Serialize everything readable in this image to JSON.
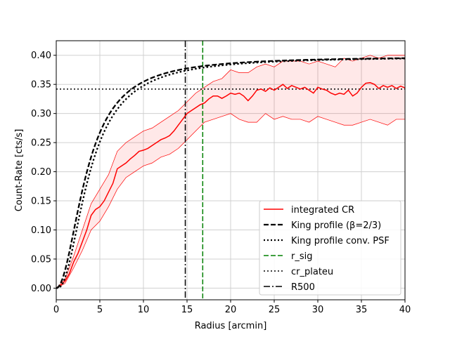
{
  "chart_data": {
    "type": "line",
    "xlabel": "Radius [arcmin]",
    "ylabel": "Count-Rate [cts/s]",
    "xlim": [
      0,
      40
    ],
    "ylim": [
      -0.02,
      0.425
    ],
    "x_ticks": [
      0,
      5,
      10,
      15,
      20,
      25,
      30,
      35,
      40
    ],
    "x_tick_labels": [
      "0",
      "5",
      "10",
      "15",
      "20",
      "25",
      "30",
      "35",
      "40"
    ],
    "y_ticks": [
      0.0,
      0.05,
      0.1,
      0.15,
      0.2,
      0.25,
      0.3,
      0.35,
      0.4
    ],
    "y_tick_labels": [
      "0.00",
      "0.05",
      "0.10",
      "0.15",
      "0.20",
      "0.25",
      "0.30",
      "0.35",
      "0.40"
    ],
    "grid": true,
    "legend_position": "lower-right",
    "series": [
      {
        "name": "integrated CR",
        "color": "#ff0000",
        "style": "solid",
        "x": [
          0,
          0.5,
          1,
          1.5,
          2,
          2.5,
          3,
          3.5,
          4,
          4.5,
          5,
          5.5,
          6,
          6.5,
          7,
          7.5,
          8,
          8.5,
          9,
          9.5,
          10,
          10.5,
          11,
          11.5,
          12,
          12.5,
          13,
          13.5,
          14,
          14.5,
          15,
          15.5,
          16,
          16.5,
          17,
          17.5,
          18,
          18.5,
          19,
          19.5,
          20,
          20.5,
          21,
          21.5,
          22,
          22.5,
          23,
          23.5,
          24,
          24.5,
          25,
          25.5,
          26,
          26.5,
          27,
          27.5,
          28,
          28.5,
          29,
          29.5,
          30,
          30.5,
          31,
          31.5,
          32,
          32.5,
          33,
          33.5,
          34,
          34.5,
          35,
          35.5,
          36,
          36.5,
          37,
          37.5,
          38,
          38.5,
          39,
          39.5,
          40
        ],
        "y": [
          0.0,
          0.005,
          0.012,
          0.025,
          0.045,
          0.06,
          0.08,
          0.1,
          0.125,
          0.135,
          0.14,
          0.15,
          0.165,
          0.18,
          0.205,
          0.21,
          0.215,
          0.222,
          0.228,
          0.235,
          0.237,
          0.24,
          0.245,
          0.25,
          0.255,
          0.258,
          0.262,
          0.27,
          0.28,
          0.29,
          0.3,
          0.305,
          0.31,
          0.315,
          0.318,
          0.325,
          0.33,
          0.33,
          0.326,
          0.33,
          0.335,
          0.333,
          0.335,
          0.33,
          0.322,
          0.33,
          0.34,
          0.342,
          0.338,
          0.344,
          0.34,
          0.345,
          0.35,
          0.343,
          0.348,
          0.345,
          0.342,
          0.345,
          0.34,
          0.335,
          0.345,
          0.342,
          0.34,
          0.335,
          0.332,
          0.335,
          0.333,
          0.34,
          0.33,
          0.335,
          0.345,
          0.352,
          0.353,
          0.35,
          0.343,
          0.348,
          0.345,
          0.348,
          0.343,
          0.347,
          0.344
        ]
      },
      {
        "name": "King profile (β=2/3)",
        "color": "#000000",
        "style": "dashed",
        "model": "king",
        "amplitude": 0.398,
        "core_radius": 3.5
      },
      {
        "name": "King profile conv. PSF",
        "color": "#000000",
        "style": "dotted",
        "model": "king_conv",
        "amplitude": 0.398,
        "core_radius": 3.8
      }
    ],
    "band": {
      "color": "#ff0000",
      "x": [
        0,
        1,
        2,
        3,
        4,
        5,
        6,
        7,
        8,
        9,
        10,
        11,
        12,
        13,
        14,
        15,
        16,
        17,
        18,
        19,
        20,
        21,
        22,
        23,
        24,
        25,
        26,
        27,
        28,
        29,
        30,
        31,
        32,
        33,
        34,
        35,
        36,
        37,
        38,
        39,
        40
      ],
      "upper": [
        0.0,
        0.015,
        0.055,
        0.1,
        0.145,
        0.17,
        0.195,
        0.235,
        0.25,
        0.26,
        0.27,
        0.275,
        0.285,
        0.295,
        0.305,
        0.32,
        0.335,
        0.345,
        0.355,
        0.36,
        0.375,
        0.37,
        0.37,
        0.38,
        0.385,
        0.38,
        0.39,
        0.39,
        0.39,
        0.385,
        0.39,
        0.385,
        0.38,
        0.395,
        0.39,
        0.395,
        0.4,
        0.395,
        0.4,
        0.4,
        0.4
      ],
      "lower": [
        0.0,
        0.008,
        0.035,
        0.065,
        0.1,
        0.115,
        0.14,
        0.17,
        0.19,
        0.2,
        0.21,
        0.215,
        0.225,
        0.23,
        0.24,
        0.255,
        0.27,
        0.285,
        0.29,
        0.295,
        0.3,
        0.29,
        0.285,
        0.285,
        0.3,
        0.29,
        0.295,
        0.29,
        0.29,
        0.285,
        0.295,
        0.29,
        0.285,
        0.28,
        0.28,
        0.285,
        0.29,
        0.285,
        0.28,
        0.29,
        0.29
      ]
    },
    "reference_lines": [
      {
        "name": "r_sig",
        "orientation": "vertical",
        "value": 16.8,
        "color": "#008000",
        "style": "dashed"
      },
      {
        "name": "cr_plateu",
        "orientation": "horizontal",
        "value": 0.342,
        "color": "#000000",
        "style": "dotted"
      },
      {
        "name": "R500",
        "orientation": "vertical",
        "value": 14.8,
        "color": "#000000",
        "style": "dashdot"
      }
    ],
    "legend": [
      {
        "label": "integrated CR",
        "color": "#ff0000",
        "style": "solid",
        "width": 1.5
      },
      {
        "label": "King profile (β=2/3)",
        "color": "#000000",
        "style": "dashed",
        "width": 2.2
      },
      {
        "label": "King profile conv. PSF",
        "color": "#000000",
        "style": "dotted",
        "width": 2.2
      },
      {
        "label": "r_sig",
        "color": "#008000",
        "style": "dashed",
        "width": 1.5
      },
      {
        "label": "cr_plateu",
        "color": "#000000",
        "style": "dotted",
        "width": 1.5
      },
      {
        "label": "R500",
        "color": "#000000",
        "style": "dashdot",
        "width": 1.5
      }
    ]
  }
}
